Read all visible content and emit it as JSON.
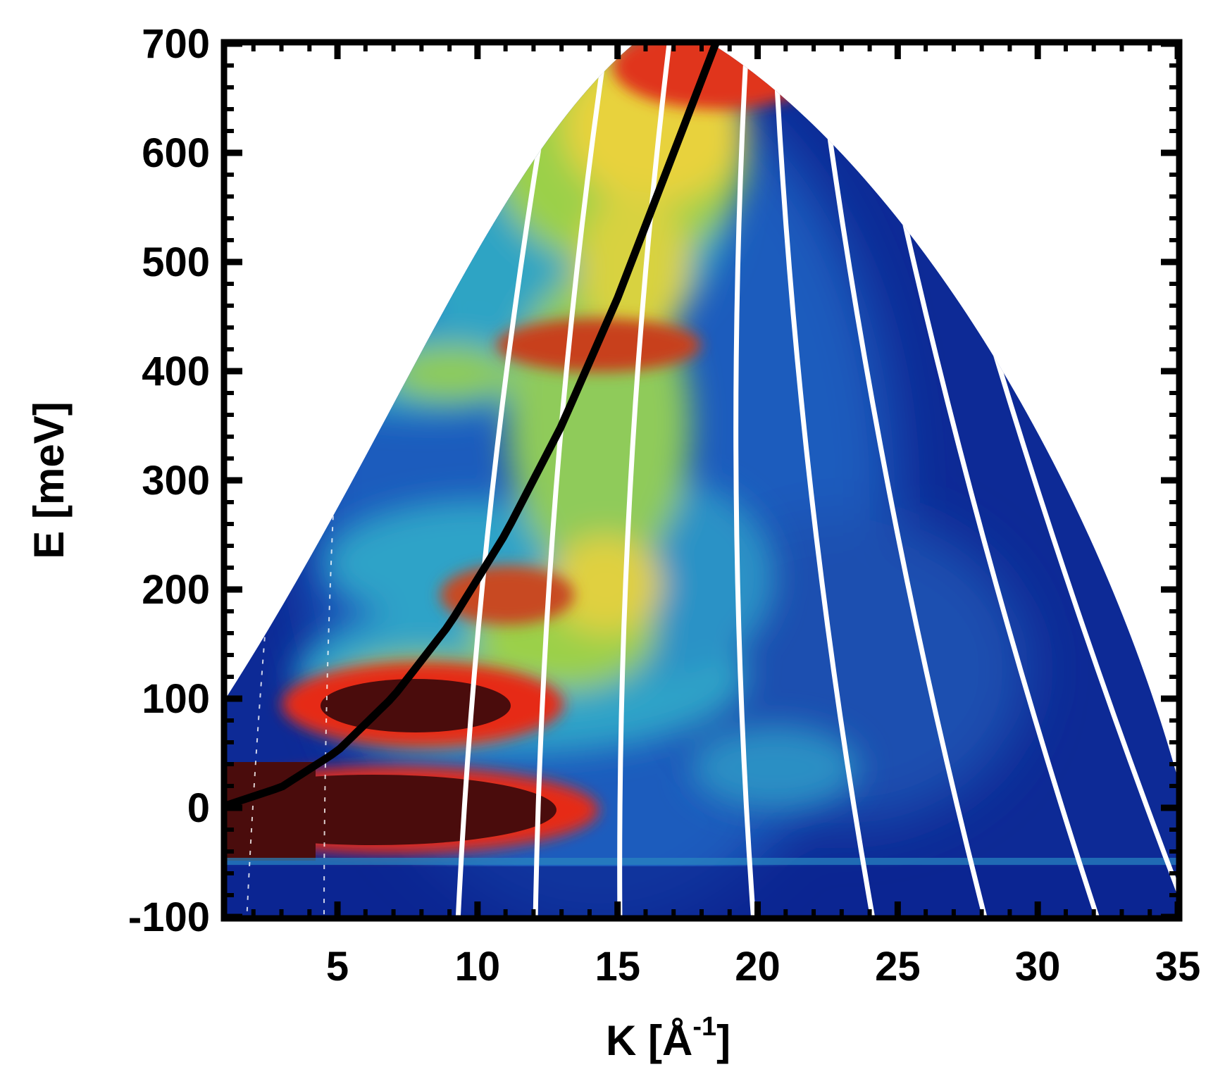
{
  "chart_data": {
    "type": "heatmap",
    "title": "",
    "xlabel": "K [Å",
    "xlabel_superscript": "-1",
    "xlabel_suffix": "]",
    "ylabel": "E [meV]",
    "xlim": [
      1,
      35
    ],
    "ylim": [
      -100,
      700
    ],
    "x_ticks": [
      5,
      10,
      15,
      20,
      25,
      30,
      35
    ],
    "y_ticks": [
      -100,
      0,
      100,
      200,
      300,
      400,
      500,
      600,
      700
    ],
    "grid": false,
    "legend": "none",
    "colormap": [
      "#0a1f8c",
      "#1f5fbf",
      "#2ea3c8",
      "#9bd04a",
      "#f0d53a",
      "#e8361c",
      "#4a0c0c"
    ],
    "recoil_curve": {
      "label": "",
      "color": "#000000",
      "x": [
        1,
        3,
        5,
        7,
        9,
        11,
        13,
        15,
        17,
        18.5
      ],
      "y": [
        2,
        19,
        52,
        102,
        168,
        251,
        350,
        467,
        600,
        700
      ]
    },
    "intensity_peaks": [
      {
        "k": 4.5,
        "e": 0,
        "level": "max"
      },
      {
        "k": 8.5,
        "e": 95,
        "level": "max"
      },
      {
        "k": 11,
        "e": 200,
        "level": "high"
      },
      {
        "k": 13.5,
        "e": 415,
        "level": "high"
      },
      {
        "k": 19,
        "e": 690,
        "level": "high"
      }
    ]
  }
}
